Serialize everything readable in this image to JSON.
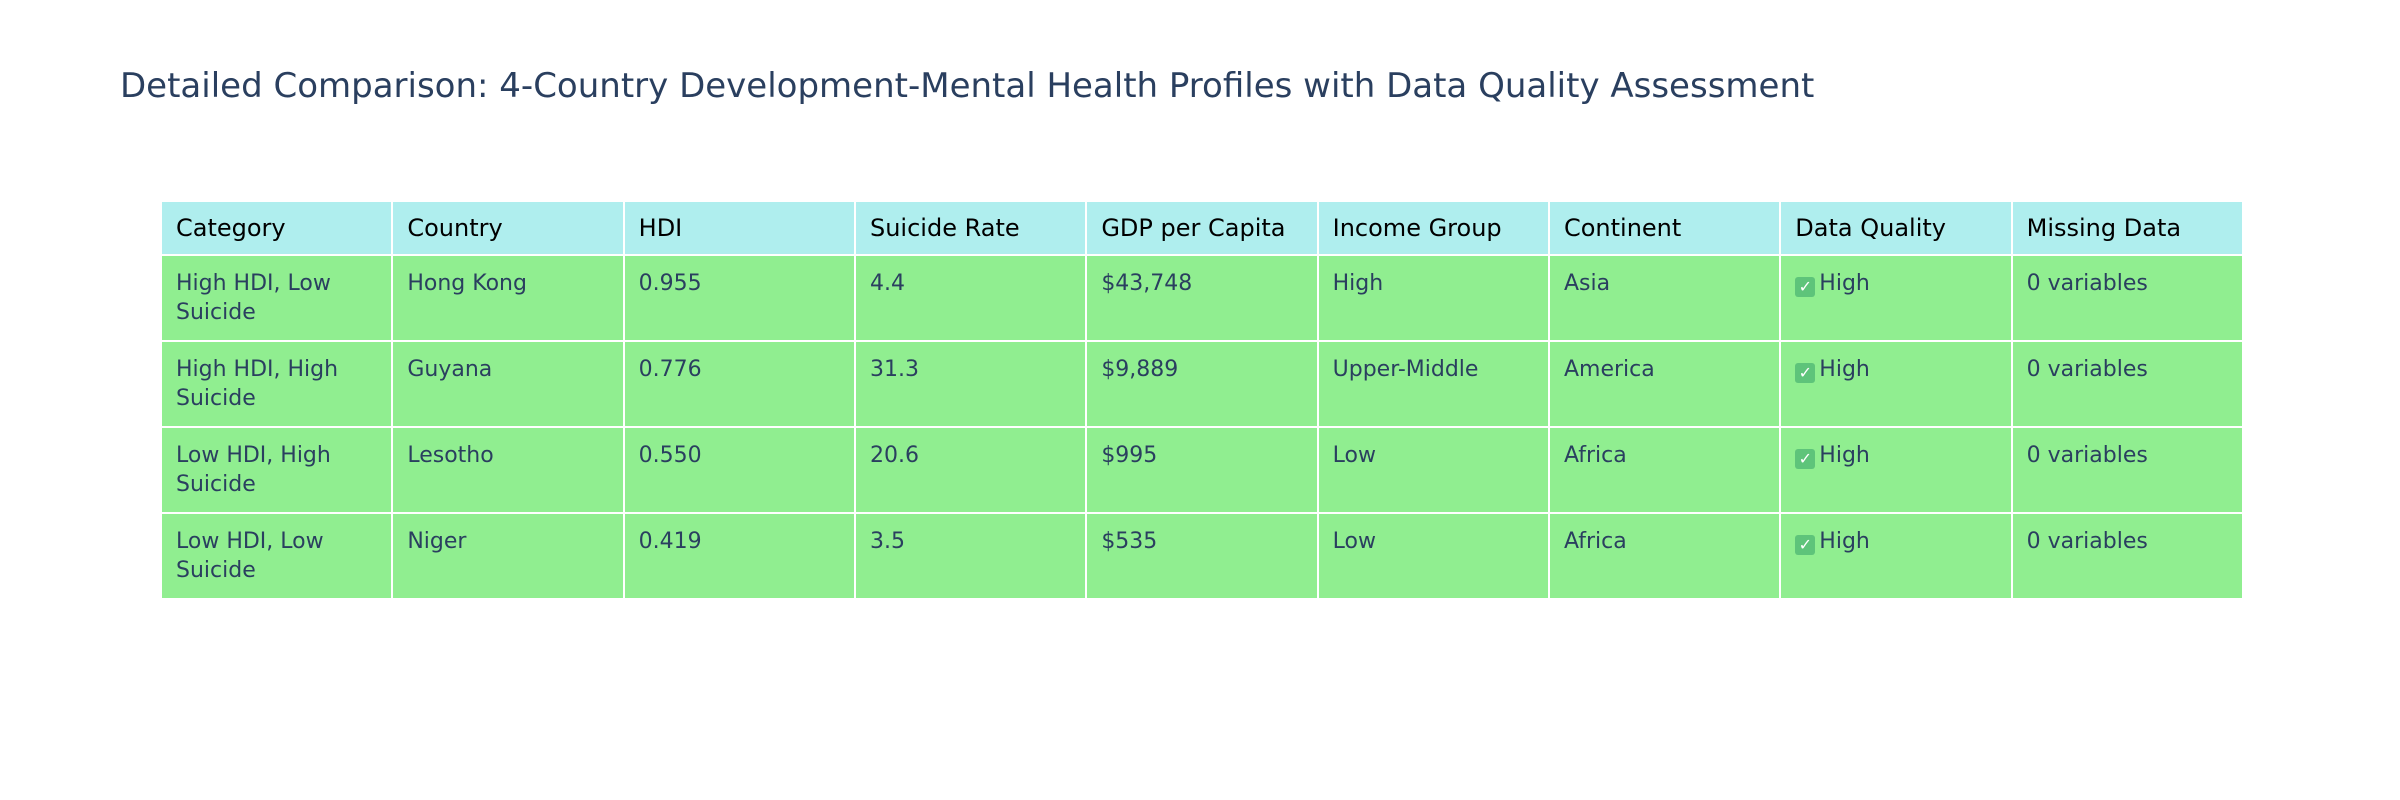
{
  "chart_data": {
    "type": "table",
    "title": "Detailed Comparison: 4-Country Development-Mental Health Profiles with Data Quality Assessment",
    "columns": [
      "Category",
      "Country",
      "HDI",
      "Suicide Rate",
      "GDP per Capita",
      "Income Group",
      "Continent",
      "Data Quality",
      "Missing Data"
    ],
    "rows": [
      [
        "High HDI, Low Suicide",
        "Hong Kong",
        "0.955",
        "4.4",
        "$43,748",
        "High",
        "Asia",
        "High",
        "0 variables"
      ],
      [
        "High HDI, High Suicide",
        "Guyana",
        "0.776",
        "31.3",
        "$9,889",
        "Upper-Middle",
        "America",
        "High",
        "0 variables"
      ],
      [
        "Low HDI, High Suicide",
        "Lesotho",
        "0.550",
        "20.6",
        "$995",
        "Low",
        "Africa",
        "High",
        "0 variables"
      ],
      [
        "Low HDI, Low Suicide",
        "Niger",
        "0.419",
        "3.5",
        "$535",
        "Low",
        "Africa",
        "High",
        "0 variables"
      ]
    ],
    "header_color": "#afeeee",
    "cell_color": "#90ee90",
    "data_quality_icon": "check-box-icon"
  }
}
